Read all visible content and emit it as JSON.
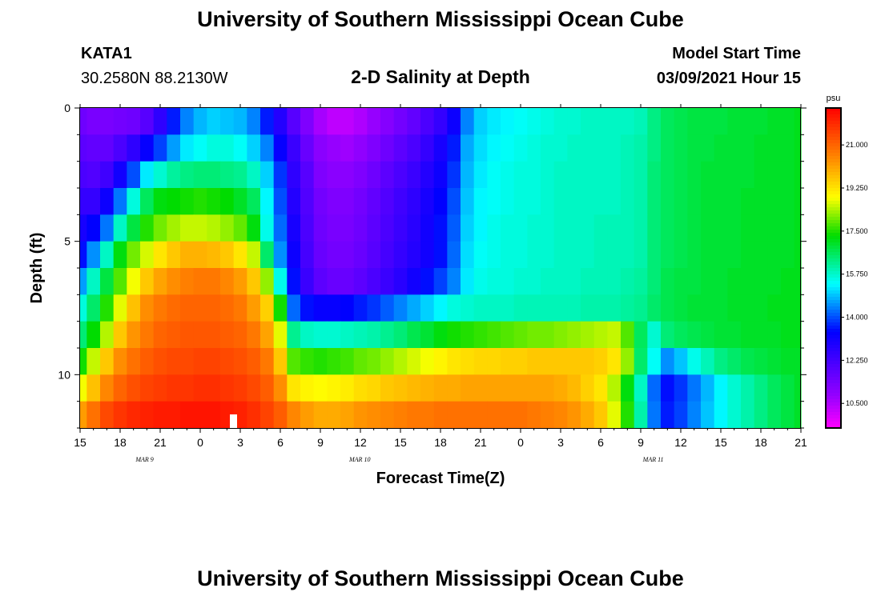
{
  "header": {
    "title": "University of Southern Mississippi Ocean Cube",
    "station_id": "KATA1",
    "coordinates": "30.2580N 88.2130W",
    "plot_title": "2-D Salinity at Depth",
    "model_start_label": "Model Start Time",
    "model_start_value": "03/09/2021 Hour 15"
  },
  "footer": {
    "title": "University of Southern Mississippi Ocean Cube"
  },
  "chart_data": {
    "type": "heatmap",
    "title": "2-D Salinity at Depth",
    "xlabel": "Forecast Time(Z)",
    "ylabel": "Depth (ft)",
    "x_tick_labels": [
      "15",
      "18",
      "21",
      "0",
      "3",
      "6",
      "9",
      "12",
      "15",
      "18",
      "21",
      "0",
      "3",
      "6",
      "9",
      "12",
      "15",
      "18",
      "21"
    ],
    "date_labels": [
      {
        "text": "MAR  9",
        "hour": 20
      },
      {
        "text": "MAR  10",
        "hour": 36
      },
      {
        "text": "MAR  11",
        "hour": 58
      }
    ],
    "x_range_hours": [
      15,
      69
    ],
    "y_tick_labels": [
      "0",
      "5",
      "10"
    ],
    "y_range_ft": [
      0,
      12
    ],
    "colorbar": {
      "unit": "psu",
      "labels": [
        "21.000",
        "19.250",
        "17.500",
        "15.750",
        "14.000",
        "12.250",
        "10.500"
      ],
      "range": [
        9.5,
        22.5
      ]
    },
    "hours": [
      15,
      16,
      17,
      18,
      19,
      20,
      21,
      22,
      23,
      24,
      25,
      26,
      27,
      28,
      29,
      30,
      31,
      32,
      33,
      34,
      35,
      36,
      37,
      38,
      39,
      40,
      41,
      42,
      43,
      44,
      45,
      46,
      47,
      48,
      49,
      50,
      51,
      52,
      53,
      54,
      55,
      56,
      57,
      58,
      59,
      60,
      61,
      62,
      63,
      64,
      65,
      66,
      67,
      68,
      69
    ],
    "depth_layers_ft": [
      0.5,
      1.5,
      2.5,
      3.5,
      4.5,
      5.5,
      6.5,
      7.5,
      8.5,
      9.5,
      10.5,
      11.5
    ],
    "salinity_psu": [
      [
        11.5,
        11.3,
        11.3,
        11.4,
        11.5,
        11.9,
        12.6,
        13.6,
        14.4,
        14.8,
        15.0,
        14.9,
        14.8,
        14.4,
        13.6,
        12.8,
        11.9,
        11.2,
        10.6,
        10.3,
        10.3,
        10.5,
        10.8,
        11.1,
        11.4,
        11.7,
        12.1,
        12.5,
        13.2,
        14.4,
        15.0,
        15.2,
        15.3,
        15.4,
        15.5,
        15.6,
        15.7,
        15.7,
        15.8,
        15.8,
        15.8,
        15.8,
        15.9,
        16.3,
        16.6,
        16.7,
        16.8,
        16.8,
        16.8,
        16.9,
        16.9,
        16.9,
        17.0,
        17.0,
        17.1
      ],
      [
        11.8,
        11.7,
        11.7,
        12.1,
        12.6,
        13.3,
        13.9,
        14.6,
        15.2,
        15.4,
        15.6,
        15.6,
        15.4,
        15.0,
        14.4,
        13.3,
        12.4,
        11.6,
        11.0,
        10.8,
        10.7,
        10.9,
        11.2,
        11.5,
        11.8,
        12.1,
        12.5,
        13.0,
        13.6,
        14.7,
        15.1,
        15.3,
        15.4,
        15.5,
        15.6,
        15.7,
        15.7,
        15.8,
        15.8,
        15.8,
        15.8,
        15.9,
        16.0,
        16.3,
        16.6,
        16.7,
        16.8,
        16.8,
        16.9,
        16.9,
        16.9,
        17.0,
        17.0,
        17.0,
        17.1
      ],
      [
        12.1,
        12.0,
        12.3,
        13.1,
        14.0,
        15.2,
        15.7,
        16.1,
        16.3,
        16.4,
        16.4,
        16.3,
        16.2,
        15.8,
        15.0,
        13.8,
        12.6,
        11.9,
        11.2,
        11.0,
        11.0,
        11.2,
        11.5,
        11.8,
        12.1,
        12.4,
        12.8,
        13.2,
        13.8,
        14.8,
        15.2,
        15.4,
        15.5,
        15.6,
        15.6,
        15.7,
        15.8,
        15.8,
        15.8,
        15.8,
        15.8,
        15.9,
        16.0,
        16.4,
        16.6,
        16.7,
        16.8,
        16.9,
        16.9,
        16.9,
        16.9,
        17.0,
        17.0,
        17.0,
        17.1
      ],
      [
        12.5,
        12.5,
        13.2,
        14.3,
        15.6,
        16.6,
        17.2,
        17.3,
        17.4,
        17.5,
        17.4,
        17.3,
        17.0,
        16.6,
        15.3,
        14.0,
        12.8,
        12.0,
        11.4,
        11.2,
        11.2,
        11.4,
        11.7,
        12.0,
        12.3,
        12.6,
        13.0,
        13.4,
        14.0,
        14.9,
        15.3,
        15.4,
        15.5,
        15.6,
        15.6,
        15.7,
        15.8,
        15.8,
        15.8,
        15.8,
        15.8,
        15.9,
        16.0,
        16.4,
        16.6,
        16.7,
        16.8,
        16.9,
        16.9,
        16.9,
        17.0,
        17.0,
        17.0,
        17.0,
        17.1
      ],
      [
        13.0,
        13.4,
        14.3,
        15.8,
        16.8,
        17.5,
        18.0,
        18.3,
        18.5,
        18.5,
        18.4,
        18.2,
        17.9,
        17.2,
        15.5,
        14.2,
        13.0,
        12.1,
        11.5,
        11.3,
        11.3,
        11.5,
        11.8,
        12.1,
        12.4,
        12.7,
        13.1,
        13.5,
        14.1,
        15.0,
        15.3,
        15.5,
        15.6,
        15.6,
        15.7,
        15.7,
        15.8,
        15.8,
        15.8,
        15.9,
        15.9,
        15.9,
        16.0,
        16.4,
        16.6,
        16.7,
        16.8,
        16.9,
        16.9,
        16.9,
        17.0,
        17.0,
        17.0,
        17.0,
        17.1
      ],
      [
        13.5,
        14.5,
        15.8,
        17.2,
        18.0,
        18.6,
        19.2,
        19.6,
        19.9,
        19.9,
        19.8,
        19.6,
        19.2,
        18.5,
        16.5,
        14.5,
        13.2,
        12.2,
        11.6,
        11.4,
        11.4,
        11.6,
        11.9,
        12.2,
        12.5,
        12.8,
        13.1,
        13.5,
        14.2,
        15.1,
        15.4,
        15.5,
        15.6,
        15.6,
        15.7,
        15.7,
        15.8,
        15.8,
        15.8,
        15.9,
        15.9,
        15.9,
        16.0,
        16.4,
        16.6,
        16.7,
        16.8,
        16.9,
        16.9,
        16.9,
        17.0,
        17.0,
        17.0,
        17.0,
        17.1
      ],
      [
        14.6,
        15.8,
        16.8,
        17.8,
        18.8,
        19.6,
        20.1,
        20.4,
        20.6,
        20.7,
        20.7,
        20.5,
        20.2,
        19.6,
        18.2,
        15.5,
        13.5,
        12.4,
        11.8,
        11.6,
        11.6,
        11.8,
        12.1,
        12.4,
        12.7,
        13.1,
        13.5,
        13.9,
        14.4,
        15.2,
        15.5,
        15.6,
        15.6,
        15.7,
        15.7,
        15.8,
        15.8,
        15.8,
        15.9,
        15.9,
        15.9,
        16.0,
        16.1,
        16.4,
        16.7,
        16.8,
        16.8,
        16.9,
        16.9,
        17.0,
        17.0,
        17.0,
        17.0,
        17.1,
        17.1
      ],
      [
        15.6,
        16.5,
        17.5,
        18.7,
        19.7,
        20.4,
        20.7,
        20.9,
        21.0,
        21.0,
        21.0,
        20.9,
        20.7,
        20.2,
        19.5,
        17.4,
        14.2,
        13.5,
        13.3,
        13.3,
        13.4,
        13.6,
        13.8,
        14.1,
        14.4,
        14.7,
        15.0,
        15.3,
        15.6,
        15.7,
        15.8,
        15.8,
        15.8,
        15.9,
        15.9,
        15.9,
        15.9,
        15.9,
        16.0,
        16.0,
        16.0,
        16.1,
        16.2,
        16.5,
        16.7,
        16.8,
        16.9,
        16.9,
        16.9,
        17.0,
        17.0,
        17.0,
        17.1,
        17.1,
        17.1
      ],
      [
        16.4,
        17.3,
        18.4,
        19.6,
        20.3,
        20.7,
        21.0,
        21.1,
        21.2,
        21.2,
        21.2,
        21.1,
        21.0,
        20.7,
        20.1,
        18.7,
        16.2,
        15.8,
        15.7,
        15.7,
        15.8,
        15.9,
        16.0,
        16.2,
        16.4,
        16.7,
        16.9,
        17.2,
        17.4,
        17.5,
        17.6,
        17.7,
        17.8,
        17.9,
        18.0,
        18.0,
        18.1,
        18.2,
        18.3,
        18.4,
        18.5,
        17.8,
        16.6,
        15.7,
        16.4,
        16.6,
        16.7,
        16.8,
        16.9,
        16.9,
        17.0,
        17.0,
        17.0,
        17.1,
        17.1
      ],
      [
        17.4,
        18.5,
        19.6,
        20.4,
        20.8,
        21.1,
        21.3,
        21.4,
        21.4,
        21.5,
        21.5,
        21.4,
        21.3,
        21.1,
        20.7,
        19.6,
        17.8,
        17.6,
        17.5,
        17.6,
        17.7,
        17.9,
        18.0,
        18.2,
        18.4,
        18.6,
        18.8,
        19.0,
        19.2,
        19.3,
        19.4,
        19.4,
        19.5,
        19.5,
        19.6,
        19.6,
        19.6,
        19.6,
        19.6,
        19.5,
        19.2,
        18.2,
        16.5,
        15.4,
        14.5,
        14.9,
        15.5,
        15.9,
        16.3,
        16.5,
        16.7,
        16.8,
        16.9,
        17.0,
        17.0
      ],
      [
        18.8,
        19.7,
        20.5,
        21.0,
        21.3,
        21.5,
        21.6,
        21.7,
        21.7,
        21.8,
        21.8,
        21.7,
        21.6,
        21.4,
        21.1,
        20.4,
        19.2,
        19.0,
        18.9,
        19.0,
        19.1,
        19.3,
        19.4,
        19.6,
        19.7,
        19.8,
        19.9,
        20.0,
        20.0,
        20.1,
        20.1,
        20.1,
        20.1,
        20.1,
        20.1,
        20.1,
        20.0,
        19.8,
        19.5,
        19.2,
        18.4,
        17.2,
        15.8,
        14.2,
        13.5,
        13.8,
        14.3,
        14.8,
        15.3,
        15.7,
        16.0,
        16.3,
        16.6,
        16.8,
        17.0
      ],
      [
        20.2,
        20.8,
        21.4,
        21.7,
        21.9,
        22.0,
        22.1,
        22.1,
        22.2,
        22.2,
        22.2,
        22.1,
        22.0,
        21.8,
        21.5,
        21.1,
        20.5,
        20.2,
        20.0,
        20.0,
        20.1,
        20.3,
        20.4,
        20.5,
        20.6,
        20.7,
        20.7,
        20.8,
        20.8,
        20.8,
        20.8,
        20.8,
        20.8,
        20.8,
        20.7,
        20.6,
        20.5,
        20.3,
        20.0,
        19.6,
        18.7,
        17.5,
        16.0,
        14.3,
        13.6,
        13.9,
        14.4,
        14.9,
        15.3,
        15.7,
        16.0,
        16.3,
        16.6,
        16.8,
        17.0
      ]
    ]
  }
}
